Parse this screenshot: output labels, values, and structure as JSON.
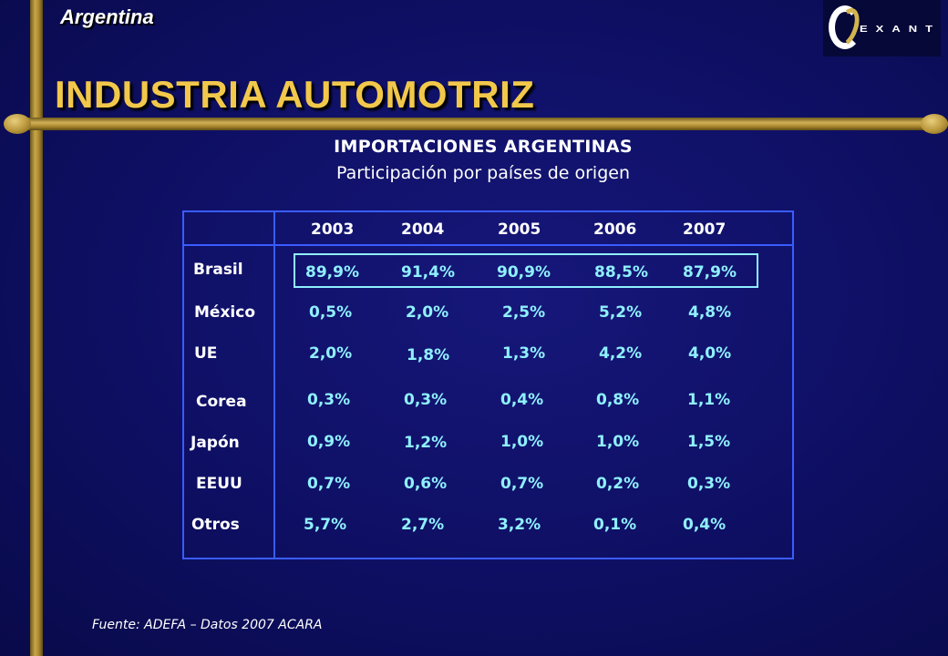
{
  "header": {
    "country": "Argentina",
    "title": "INDUSTRIA AUTOMOTRIZ",
    "logo_text": "EXANTE"
  },
  "subtitle": {
    "line1": "IMPORTACIONES ARGENTINAS",
    "line2": "Participación por países de origen"
  },
  "table": {
    "years": [
      "2003",
      "2004",
      "2005",
      "2006",
      "2007"
    ],
    "rows": [
      {
        "label": "Brasil",
        "values": [
          "89,9%",
          "91,4%",
          "90,9%",
          "88,5%",
          "87,9%"
        ]
      },
      {
        "label": "México",
        "values": [
          "0,5%",
          "2,0%",
          "2,5%",
          "5,2%",
          "4,8%"
        ]
      },
      {
        "label": "UE",
        "values": [
          "2,0%",
          "1,8%",
          "1,3%",
          "4,2%",
          "4,0%"
        ]
      },
      {
        "label": "Corea",
        "values": [
          "0,3%",
          "0,3%",
          "0,4%",
          "0,8%",
          "1,1%"
        ]
      },
      {
        "label": "Japón",
        "values": [
          "0,9%",
          "1,2%",
          "1,0%",
          "1,0%",
          "1,5%"
        ]
      },
      {
        "label": "EEUU",
        "values": [
          "0,7%",
          "0,6%",
          "0,7%",
          "0,2%",
          "0,3%"
        ]
      },
      {
        "label": "Otros",
        "values": [
          "5,7%",
          "2,7%",
          "3,2%",
          "0,1%",
          "0,4%"
        ]
      }
    ]
  },
  "footer": {
    "source": "Fuente: ADEFA – Datos 2007 ACARA"
  },
  "colors": {
    "background": "#0e0f63",
    "title": "#f2c84b",
    "grid": "#3a5cff",
    "value": "#8ff0ff",
    "frame_gold": "#c9a64a"
  }
}
